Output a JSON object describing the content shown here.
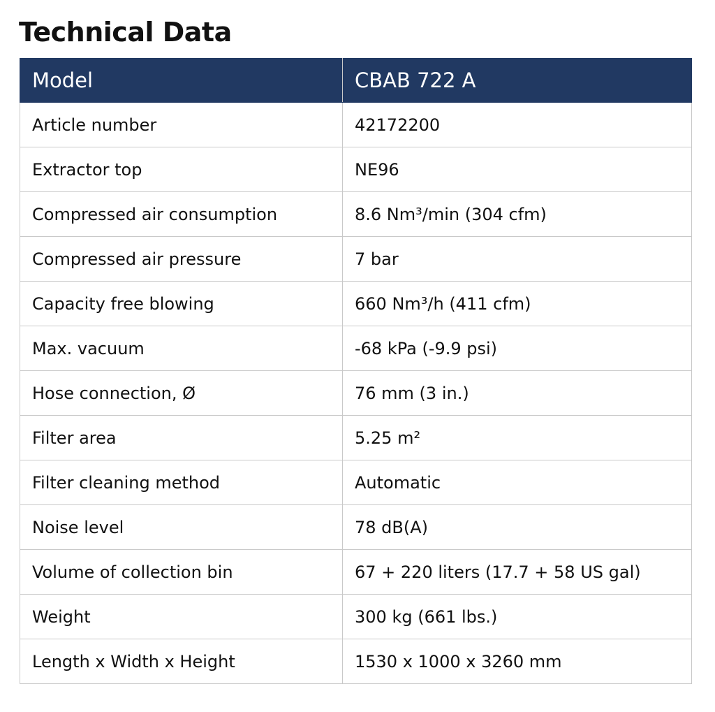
{
  "title": "Technical Data",
  "header": {
    "label": "Model",
    "value": "CBAB 722 A"
  },
  "rows": [
    {
      "label": "Article number",
      "value": "42172200"
    },
    {
      "label": "Extractor top",
      "value": "NE96"
    },
    {
      "label": "Compressed air consumption",
      "value": "8.6 Nm³/min (304 cfm)"
    },
    {
      "label": "Compressed air pressure",
      "value": "7 bar"
    },
    {
      "label": "Capacity free blowing",
      "value": "660 Nm³/h (411 cfm)"
    },
    {
      "label": "Max. vacuum",
      "value": "-68 kPa (-9.9 psi)"
    },
    {
      "label": "Hose connection, Ø",
      "value": "76 mm (3 in.)"
    },
    {
      "label": "Filter area",
      "value": "5.25 m²"
    },
    {
      "label": "Filter cleaning method",
      "value": "Automatic"
    },
    {
      "label": "Noise level",
      "value": "78 dB(A)"
    },
    {
      "label": "Volume of collection bin",
      "value": "67 + 220 liters (17.7 + 58 US gal)"
    },
    {
      "label": "Weight",
      "value": "300 kg (661 lbs.)"
    },
    {
      "label": "Length x Width x Height",
      "value": "1530 x 1000 x 3260 mm"
    }
  ]
}
